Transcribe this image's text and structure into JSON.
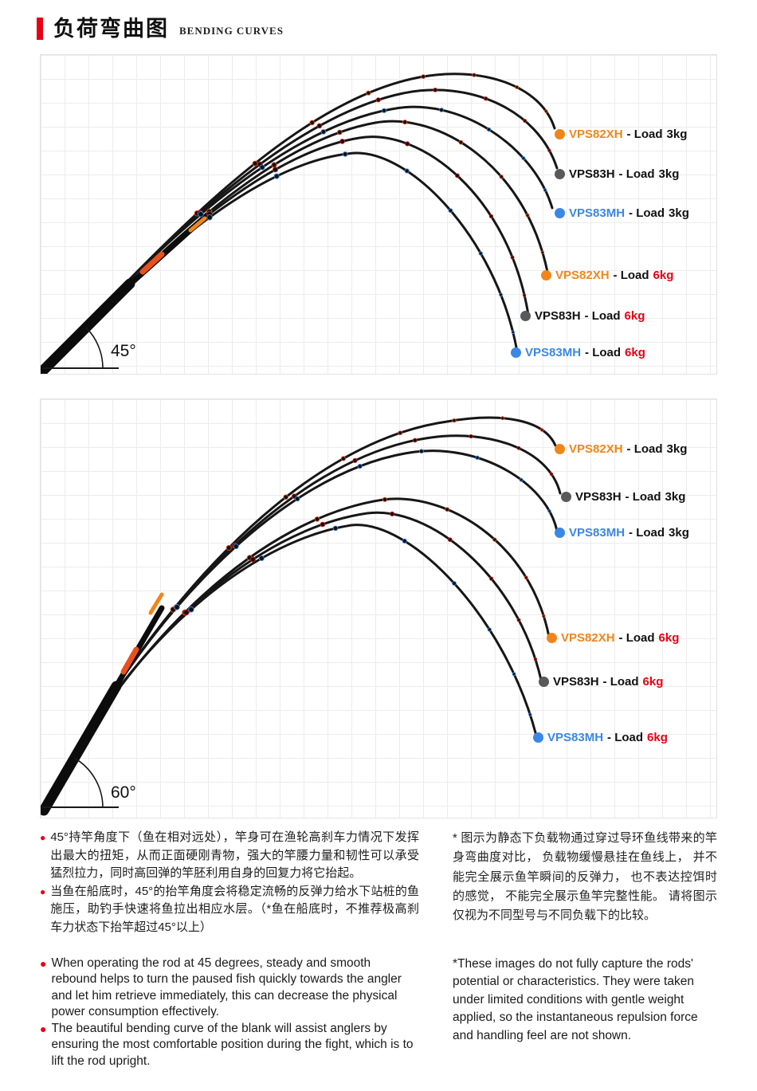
{
  "header": {
    "title_cn": "负荷弯曲图",
    "title_en": "BENDING CURVES"
  },
  "colors": {
    "accent": "#e60012",
    "orange": "#f0861a",
    "gray": "#58595b",
    "blue": "#3a87e6"
  },
  "panels": [
    {
      "angle": "45°",
      "legend": [
        {
          "model": "VPS82XH",
          "mid": "- Load",
          "value": "3kg",
          "dot_color": "#f0861a",
          "model_color": "#f0861a",
          "value_color": "#111111"
        },
        {
          "model": "VPS83H",
          "mid": "- Load",
          "value": "3kg",
          "dot_color": "#58595b",
          "model_color": "#111111",
          "value_color": "#111111"
        },
        {
          "model": "VPS83MH",
          "mid": "- Load",
          "value": "3kg",
          "dot_color": "#3a87e6",
          "model_color": "#3a87e6",
          "value_color": "#111111"
        },
        {
          "model": "VPS82XH",
          "mid": "- Load",
          "value": "6kg",
          "dot_color": "#f0861a",
          "model_color": "#f0861a",
          "value_color": "#e60012"
        },
        {
          "model": "VPS83H",
          "mid": "- Load",
          "value": "6kg",
          "dot_color": "#58595b",
          "model_color": "#111111",
          "value_color": "#e60012"
        },
        {
          "model": "VPS83MH",
          "mid": "- Load",
          "value": "6kg",
          "dot_color": "#3a87e6",
          "model_color": "#3a87e6",
          "value_color": "#e60012"
        }
      ]
    },
    {
      "angle": "60°",
      "legend": [
        {
          "model": "VPS82XH",
          "mid": "- Load",
          "value": "3kg",
          "dot_color": "#f0861a",
          "model_color": "#f0861a",
          "value_color": "#111111"
        },
        {
          "model": "VPS83H",
          "mid": "- Load",
          "value": "3kg",
          "dot_color": "#58595b",
          "model_color": "#111111",
          "value_color": "#111111"
        },
        {
          "model": "VPS83MH",
          "mid": "- Load",
          "value": "3kg",
          "dot_color": "#3a87e6",
          "model_color": "#3a87e6",
          "value_color": "#111111"
        },
        {
          "model": "VPS82XH",
          "mid": "- Load",
          "value": "6kg",
          "dot_color": "#f0861a",
          "model_color": "#f0861a",
          "value_color": "#e60012"
        },
        {
          "model": "VPS83H",
          "mid": "- Load",
          "value": "6kg",
          "dot_color": "#58595b",
          "model_color": "#111111",
          "value_color": "#e60012"
        },
        {
          "model": "VPS83MH",
          "mid": "- Load",
          "value": "6kg",
          "dot_color": "#3a87e6",
          "model_color": "#3a87e6",
          "value_color": "#e60012"
        }
      ]
    }
  ],
  "notes": {
    "bullet_char": "●",
    "cn_bullets": [
      "45°持竿角度下（鱼在相对远处），竿身可在渔轮高刹车力情况下发挥出最大的扭矩，从而正面硬刚青物，强大的竿腰力量和韧性可以承受猛烈拉力，同时高回弹的竿胚利用自身的回复力将它抬起。",
      "当鱼在船底时，45°的抬竿角度会将稳定流畅的反弹力给水下站桩的鱼施压，助钓手快速将鱼拉出相应水层。（*鱼在船底时，不推荐极高刹车力状态下抬竿超过45°以上）"
    ],
    "cn_note": "* 图示为静态下负载物通过穿过导环鱼线带来的竿身弯曲度对比， 负载物缓慢悬挂在鱼线上， 并不能完全展示鱼竿瞬间的反弹力， 也不表达控饵时的感觉， 不能完全展示鱼竿完整性能。 请将图示仅视为不同型号与不同负载下的比较。",
    "en_bullets": [
      "When operating the rod at 45 degrees, steady and smooth rebound helps to turn the paused fish quickly towards the angler and let him retrieve immediately, this can decrease the physical power consumption effectively.",
      "The beautiful bending curve of the blank will assist anglers by ensuring the most comfortable position during the fight, which is to lift the rod upright."
    ],
    "en_note": "*These images do not fully capture the rods' potential or characteristics. They were taken under limited conditions with gentle weight applied, so the instantaneous repulsion force and handling feel are not shown."
  }
}
